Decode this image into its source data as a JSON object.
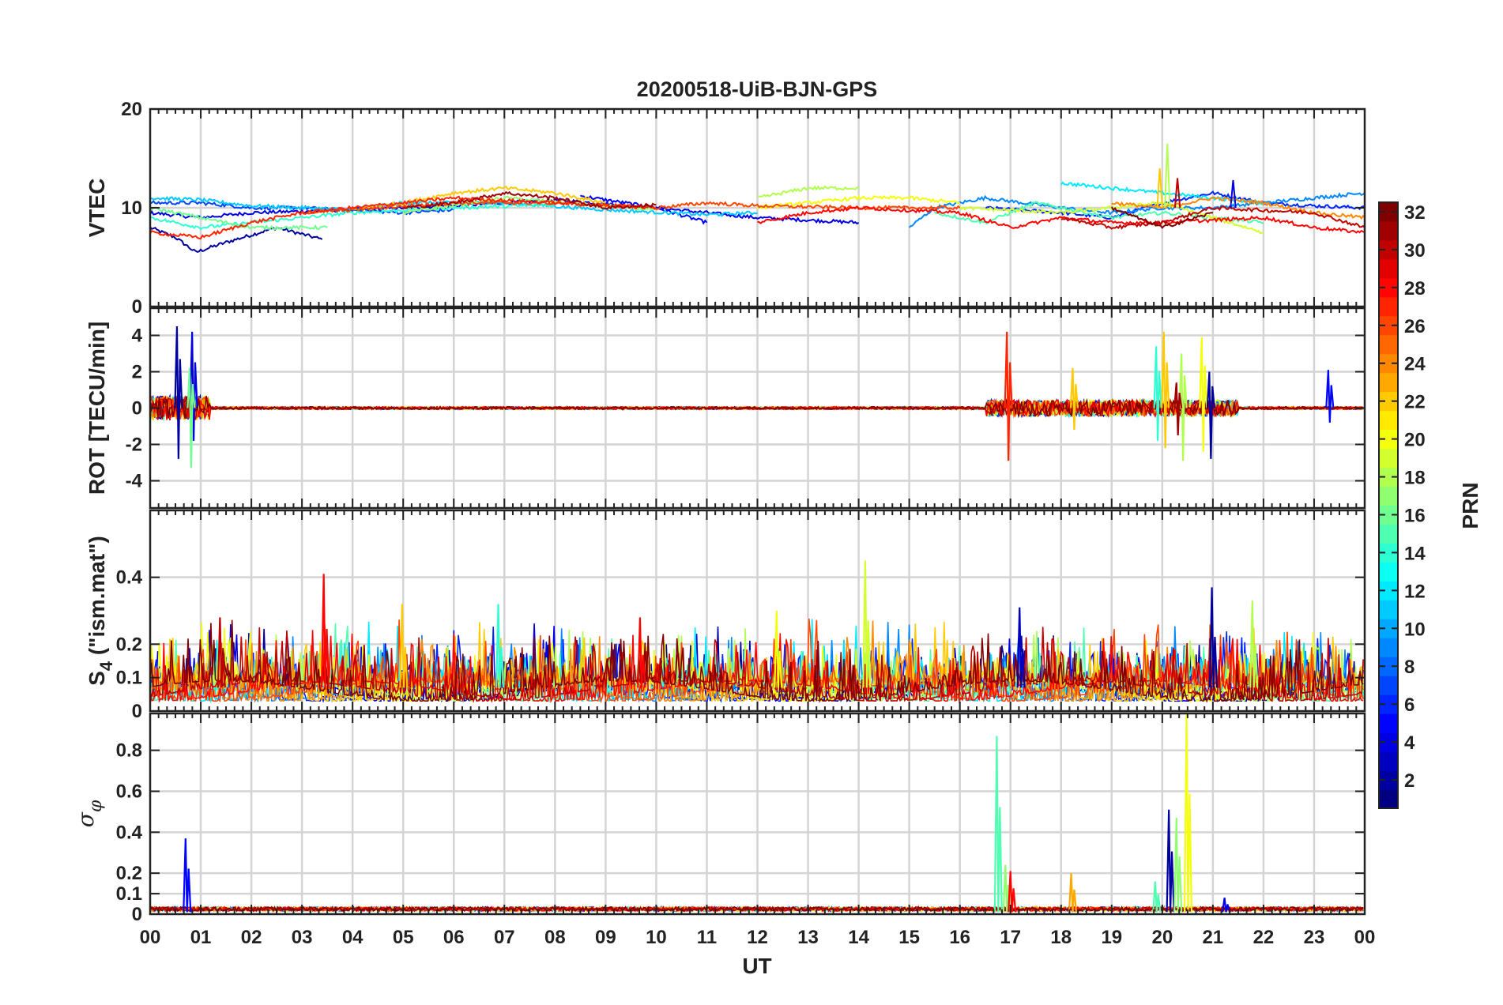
{
  "chart_data": {
    "type": "line",
    "title": "20200518-UiB-BJN-GPS",
    "xlabel": "UT",
    "x_tick_labels": [
      "00",
      "01",
      "02",
      "03",
      "04",
      "05",
      "06",
      "07",
      "08",
      "09",
      "10",
      "11",
      "12",
      "13",
      "14",
      "15",
      "16",
      "17",
      "18",
      "19",
      "20",
      "21",
      "22",
      "23",
      "00"
    ],
    "xlim": [
      0,
      24
    ],
    "grid": true,
    "colorbar": {
      "label": "PRN",
      "range": [
        1,
        32
      ],
      "tick_labels": [
        "2",
        "4",
        "6",
        "8",
        "10",
        "12",
        "14",
        "16",
        "18",
        "20",
        "22",
        "24",
        "26",
        "28",
        "30",
        "32"
      ],
      "colormap": "jet"
    },
    "panels": [
      {
        "id": "vtec",
        "ylabel": "VTEC",
        "ylim": [
          0,
          20
        ],
        "y_ticks": [
          0,
          10,
          20
        ],
        "y_tick_labels": [
          "0",
          "10",
          "20"
        ],
        "series": [
          {
            "prn": 2,
            "points": [
              [
                0,
                8.0
              ],
              [
                0.5,
                7.0
              ],
              [
                0.9,
                5.5
              ],
              [
                1.5,
                6.5
              ],
              [
                2.5,
                8.0
              ],
              [
                3.4,
                6.8
              ]
            ]
          },
          {
            "prn": 4,
            "points": [
              [
                0,
                9.5
              ],
              [
                1,
                9.0
              ],
              [
                2,
                9.5
              ],
              [
                4,
                9.8
              ],
              [
                6,
                10.2
              ],
              [
                8,
                10.8
              ],
              [
                10,
                10.0
              ],
              [
                12,
                9.0
              ],
              [
                14,
                8.5
              ]
            ]
          },
          {
            "prn": 5,
            "points": [
              [
                8.5,
                11.2
              ],
              [
                10,
                10.0
              ],
              [
                11,
                8.5
              ]
            ]
          },
          {
            "prn": 6,
            "points": [
              [
                16.5,
                10.0
              ],
              [
                18,
                9.5
              ],
              [
                19,
                9.0
              ],
              [
                20,
                10.5
              ],
              [
                21,
                11.5
              ],
              [
                22,
                10.5
              ],
              [
                23,
                10.2
              ],
              [
                24,
                10.0
              ]
            ]
          },
          {
            "prn": 7,
            "points": [
              [
                0,
                10.5
              ],
              [
                1,
                10.5
              ],
              [
                2,
                10.0
              ],
              [
                3,
                10.0
              ],
              [
                5,
                9.5
              ],
              [
                6,
                9.8
              ]
            ]
          },
          {
            "prn": 9,
            "points": [
              [
                15,
                8.0
              ],
              [
                15.5,
                10.0
              ],
              [
                16.5,
                11.0
              ],
              [
                18,
                10.0
              ],
              [
                19,
                9.5
              ],
              [
                20,
                10.0
              ],
              [
                21,
                10.0
              ],
              [
                23,
                11.0
              ],
              [
                24,
                11.5
              ]
            ]
          },
          {
            "prn": 11,
            "points": [
              [
                0,
                11.0
              ],
              [
                1,
                10.8
              ],
              [
                2,
                10.2
              ],
              [
                4,
                9.8
              ],
              [
                5,
                10.5
              ],
              [
                7,
                10.5
              ],
              [
                9,
                9.8
              ],
              [
                11,
                9.3
              ],
              [
                12,
                9.5
              ]
            ]
          },
          {
            "prn": 12,
            "points": [
              [
                18,
                12.5
              ],
              [
                19,
                12.0
              ],
              [
                20,
                11.5
              ],
              [
                21,
                11.0
              ],
              [
                22,
                10.5
              ]
            ]
          },
          {
            "prn": 14,
            "points": [
              [
                0,
                9.0
              ],
              [
                1,
                8.0
              ],
              [
                2,
                8.5
              ],
              [
                3,
                9.0
              ],
              [
                4,
                9.5
              ],
              [
                6,
                10.0
              ],
              [
                8,
                10.3
              ]
            ]
          },
          {
            "prn": 15,
            "points": [
              [
                15.5,
                9.5
              ],
              [
                16.5,
                8.5
              ],
              [
                17.5,
                10.5
              ],
              [
                19,
                9.0
              ],
              [
                20,
                9.5
              ],
              [
                21,
                9.0
              ],
              [
                22,
                8.5
              ]
            ]
          },
          {
            "prn": 16,
            "points": [
              [
                0,
                10.0
              ],
              [
                1,
                9.0
              ],
              [
                2,
                8.0
              ],
              [
                3.5,
                8.0
              ]
            ]
          },
          {
            "prn": 17,
            "points": [
              [
                5,
                9.5
              ],
              [
                7,
                11.0
              ],
              [
                9,
                10.2
              ],
              [
                10,
                9.8
              ]
            ]
          },
          {
            "prn": 18,
            "points": [
              [
                12,
                11.0
              ],
              [
                13,
                12.0
              ],
              [
                14,
                12.0
              ]
            ]
          },
          {
            "prn": 19,
            "points": [
              [
                16,
                10.0
              ],
              [
                18,
                9.5
              ],
              [
                20,
                10.5
              ],
              [
                21,
                9.0
              ],
              [
                22,
                7.5
              ]
            ]
          },
          {
            "prn": 20,
            "points": [
              [
                12,
                10.0
              ],
              [
                14,
                11.0
              ],
              [
                15,
                11.0
              ],
              [
                16,
                10.5
              ]
            ]
          },
          {
            "prn": 22,
            "points": [
              [
                4,
                9.8
              ],
              [
                5,
                10.5
              ],
              [
                6,
                11.5
              ],
              [
                7,
                12.0
              ],
              [
                8,
                11.5
              ],
              [
                9,
                10.5
              ]
            ]
          },
          {
            "prn": 24,
            "points": [
              [
                19,
                10.5
              ],
              [
                20,
                10.0
              ],
              [
                21,
                11.0
              ],
              [
                22,
                10.5
              ],
              [
                23,
                9.5
              ],
              [
                24,
                9.0
              ]
            ]
          },
          {
            "prn": 26,
            "points": [
              [
                3,
                9.5
              ],
              [
                4,
                9.8
              ],
              [
                6,
                10.5
              ],
              [
                8,
                10.5
              ],
              [
                10,
                10.0
              ],
              [
                11,
                10.5
              ],
              [
                12,
                10.2
              ],
              [
                14,
                10.0
              ],
              [
                16,
                10.0
              ]
            ]
          },
          {
            "prn": 27,
            "points": [
              [
                0,
                7.5
              ],
              [
                1,
                7.0
              ],
              [
                2,
                8.5
              ],
              [
                3,
                9.5
              ],
              [
                4,
                10.0
              ],
              [
                5,
                10.5
              ],
              [
                6,
                11.0
              ],
              [
                8,
                10.5
              ],
              [
                10,
                10.0
              ]
            ]
          },
          {
            "prn": 28,
            "points": [
              [
                12,
                8.5
              ],
              [
                13,
                9.5
              ],
              [
                14,
                10.0
              ],
              [
                16,
                9.5
              ],
              [
                17,
                8.0
              ],
              [
                18,
                9.0
              ],
              [
                19,
                8.5
              ],
              [
                20,
                8.5
              ],
              [
                22,
                9.0
              ],
              [
                23,
                8.0
              ],
              [
                24,
                7.5
              ]
            ]
          },
          {
            "prn": 30,
            "points": [
              [
                18,
                9.0
              ],
              [
                19,
                8.0
              ],
              [
                20,
                8.5
              ],
              [
                21,
                10.0
              ],
              [
                23,
                9.5
              ],
              [
                24,
                8.0
              ]
            ]
          },
          {
            "prn": 31,
            "points": [
              [
                5,
                10.0
              ],
              [
                6,
                10.5
              ],
              [
                7,
                11.5
              ],
              [
                8,
                11.0
              ],
              [
                9,
                10.0
              ],
              [
                10,
                10.3
              ]
            ]
          },
          {
            "prn": 32,
            "points": [
              [
                19,
                10.0
              ],
              [
                20,
                8.0
              ],
              [
                21,
                9.5
              ]
            ]
          }
        ]
      },
      {
        "id": "rot",
        "ylabel": "ROT [TECU/min]",
        "ylim": [
          -5.5,
          5.5
        ],
        "y_ticks": [
          -4,
          -2,
          0,
          2,
          4
        ],
        "y_tick_labels": [
          "-4",
          "-2",
          "0",
          "2",
          "4"
        ],
        "spikes": [
          {
            "prn": 2,
            "t": 0.55,
            "max": 4.5,
            "min": -2.8
          },
          {
            "prn": 4,
            "t": 0.85,
            "max": 4.2,
            "min": -1.8
          },
          {
            "prn": 16,
            "t": 0.8,
            "max": 2.2,
            "min": -3.3
          },
          {
            "prn": 27,
            "t": 16.95,
            "max": 4.2,
            "min": -2.9
          },
          {
            "prn": 22,
            "t": 18.25,
            "max": 2.2,
            "min": -1.2
          },
          {
            "prn": 14,
            "t": 19.9,
            "max": 3.4,
            "min": -1.8
          },
          {
            "prn": 22,
            "t": 20.05,
            "max": 4.2,
            "min": -2.2
          },
          {
            "prn": 18,
            "t": 20.4,
            "max": 3.0,
            "min": -2.9
          },
          {
            "prn": 20,
            "t": 20.8,
            "max": 3.9,
            "min": -2.4
          },
          {
            "prn": 2,
            "t": 20.95,
            "max": 2.0,
            "min": -2.8
          },
          {
            "prn": 31,
            "t": 20.3,
            "max": 1.4,
            "min": -1.5
          },
          {
            "prn": 5,
            "t": 23.3,
            "max": 2.1,
            "min": -0.8
          }
        ]
      },
      {
        "id": "s4",
        "ylabel": "S4 (\"ism.mat\")",
        "ylabel_main": "S",
        "ylabel_sub": "4",
        "ylabel_rest": " (\"ism.mat\")",
        "ylim": [
          0,
          0.6
        ],
        "y_ticks": [
          0,
          0.1,
          0.2,
          0.4
        ],
        "y_tick_labels": [
          "0",
          "0.1",
          "0.2",
          "0.4"
        ],
        "spikes": [
          {
            "prn": 28,
            "t": 3.45,
            "max": 0.41
          },
          {
            "prn": 22,
            "t": 5.0,
            "max": 0.32
          },
          {
            "prn": 14,
            "t": 6.9,
            "max": 0.32
          },
          {
            "prn": 28,
            "t": 9.7,
            "max": 0.28
          },
          {
            "prn": 19,
            "t": 14.15,
            "max": 0.45
          },
          {
            "prn": 2,
            "t": 21.0,
            "max": 0.37
          },
          {
            "prn": 3,
            "t": 17.2,
            "max": 0.31
          },
          {
            "prn": 18,
            "t": 21.8,
            "max": 0.33
          },
          {
            "prn": 30,
            "t": 1.4,
            "max": 0.28
          },
          {
            "prn": 20,
            "t": 12.4,
            "max": 0.3
          }
        ]
      },
      {
        "id": "sigma_phi",
        "ylabel": "σφ",
        "ylabel_main": "σ",
        "ylabel_sub": "φ",
        "ylim": [
          0,
          0.98
        ],
        "y_ticks": [
          0,
          0.1,
          0.2,
          0.4,
          0.6,
          0.8
        ],
        "y_tick_labels": [
          "0",
          "0.1",
          "0.2",
          "0.4",
          "0.6",
          "0.8"
        ],
        "spikes": [
          {
            "prn": 5,
            "t": 0.72,
            "max": 0.37
          },
          {
            "prn": 15,
            "t": 16.75,
            "max": 0.87
          },
          {
            "prn": 17,
            "t": 16.92,
            "max": 0.24
          },
          {
            "prn": 28,
            "t": 17.02,
            "max": 0.21
          },
          {
            "prn": 23,
            "t": 18.22,
            "max": 0.2
          },
          {
            "prn": 15,
            "t": 19.88,
            "max": 0.16
          },
          {
            "prn": 2,
            "t": 20.15,
            "max": 0.51
          },
          {
            "prn": 17,
            "t": 20.3,
            "max": 0.47
          },
          {
            "prn": 20,
            "t": 20.5,
            "max": 0.98
          },
          {
            "prn": 4,
            "t": 21.25,
            "max": 0.08
          }
        ]
      }
    ]
  }
}
